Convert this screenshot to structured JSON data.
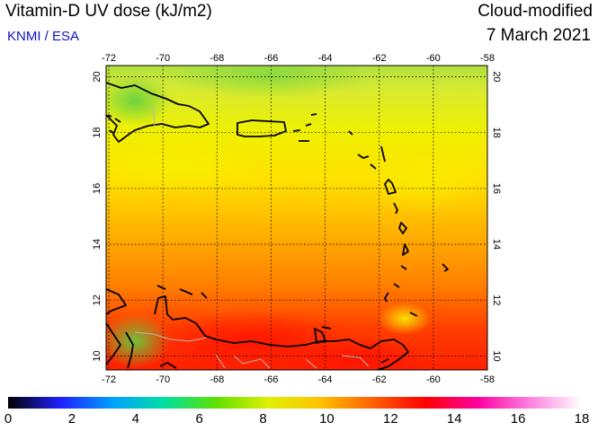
{
  "header": {
    "title": "Vitamin-D UV dose (kJ/m2)",
    "credit": "KNMI / ESA",
    "mode": "Cloud-modified",
    "date": "7 March 2021"
  },
  "map": {
    "lon_range": [
      -72.1,
      -58
    ],
    "lat_range": [
      9.5,
      20.4
    ],
    "lon_ticks": [
      "-72",
      "-70",
      "-68",
      "-66",
      "-64",
      "-62",
      "-60",
      "-58"
    ],
    "lon_values": [
      -72,
      -70,
      -68,
      -66,
      -64,
      -62,
      -60,
      -58
    ],
    "lat_ticks": [
      "20",
      "18",
      "16",
      "14",
      "12",
      "10"
    ],
    "lat_values": [
      20,
      18,
      16,
      14,
      12,
      10
    ],
    "grid": true,
    "coastline_color": "#000000",
    "field_description_colors": {
      "north": "#b8e040",
      "middle": "#ffb000",
      "south": "#ff2000"
    }
  },
  "colorbar": {
    "min": 0,
    "max": 18,
    "labels": [
      "0",
      "2",
      "4",
      "6",
      "8",
      "10",
      "12",
      "14",
      "16",
      "18"
    ],
    "label_values": [
      0,
      2,
      4,
      6,
      8,
      10,
      12,
      14,
      16,
      18
    ],
    "stops": [
      "#000000",
      "#2020ff",
      "#00a0ff",
      "#00e0a0",
      "#60e000",
      "#e0f000",
      "#ffc000",
      "#ff6000",
      "#ff0000",
      "#ff00a0",
      "#ff80e0",
      "#ffffff"
    ]
  }
}
